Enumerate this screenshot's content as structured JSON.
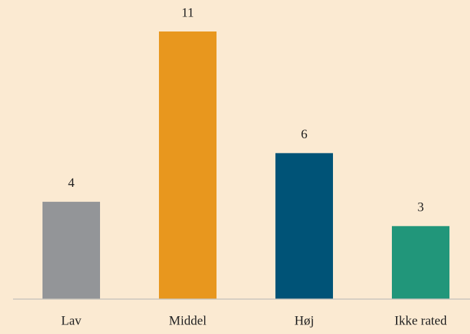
{
  "chart_data": {
    "type": "bar",
    "categories": [
      "Lav",
      "Middel",
      "Høj",
      "Ikke rated"
    ],
    "values": [
      4,
      11,
      6,
      3
    ],
    "colors": [
      "#939598",
      "#e8971e",
      "#005377",
      "#21967a"
    ],
    "ylim": [
      0,
      11
    ]
  }
}
